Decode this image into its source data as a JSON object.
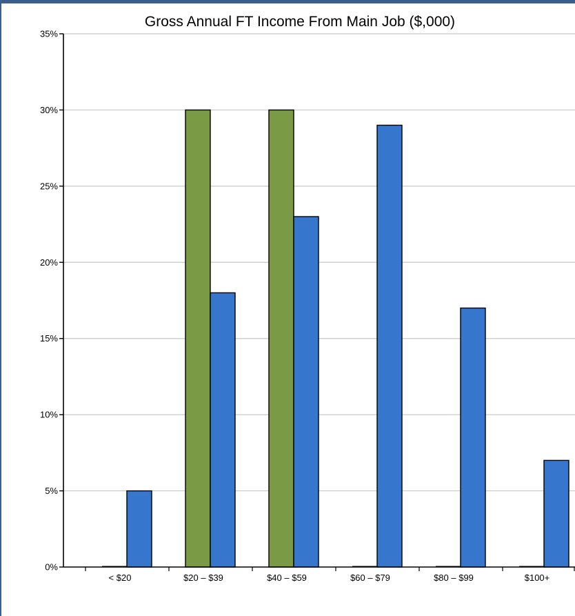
{
  "chart_data": {
    "type": "bar",
    "title": "Gross Annual FT Income From Main Job ($,000)",
    "xlabel": "",
    "ylabel": "",
    "ylim": [
      0,
      35
    ],
    "yticks": [
      "0%",
      "5%",
      "10%",
      "15%",
      "20%",
      "25%",
      "30%",
      "35%"
    ],
    "ytick_values": [
      0,
      5,
      10,
      15,
      20,
      25,
      30,
      35
    ],
    "categories": [
      "< $20",
      "$20 – $39",
      "$40 – $59",
      "$60 – $79",
      "$80 – $99",
      "$100+"
    ],
    "series": [
      {
        "values": [
          0,
          30,
          30,
          0,
          0,
          0
        ],
        "color": "#7a9a45"
      },
      {
        "values": [
          5,
          18,
          23,
          29,
          17,
          7
        ],
        "color": "#3676cc"
      }
    ],
    "grid": true,
    "legend": "none"
  }
}
